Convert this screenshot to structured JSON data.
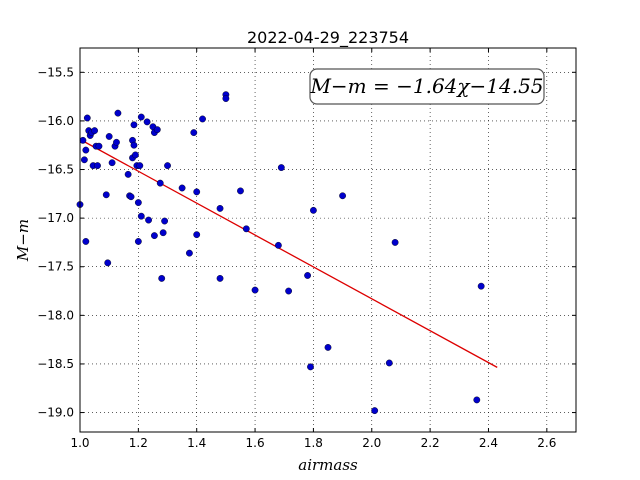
{
  "chart_data": {
    "type": "scatter",
    "title": "2022-04-29_223754",
    "xlabel": "airmass",
    "ylabel": "M−m",
    "xlim": [
      1.0,
      2.7
    ],
    "ylim": [
      -19.2,
      -15.25
    ],
    "y_inverted": true,
    "grid": true,
    "x_ticks": [
      1.0,
      1.2,
      1.4,
      1.6,
      1.8,
      2.0,
      2.2,
      2.4,
      2.6
    ],
    "x_tick_labels": [
      "1.0",
      "1.2",
      "1.4",
      "1.6",
      "1.8",
      "2.0",
      "2.2",
      "2.4",
      "2.6"
    ],
    "y_ticks": [
      -15.5,
      -16.0,
      -16.5,
      -17.0,
      -17.5,
      -18.0,
      -18.5,
      -19.0
    ],
    "y_tick_labels": [
      "−15.5",
      "−16.0",
      "−16.5",
      "−17.0",
      "−17.5",
      "−18.0",
      "−18.5",
      "−19.0"
    ],
    "annotation": "M−m = −1.64χ−14.55",
    "annotation_position": "top-right",
    "point_color": "#0000cc",
    "fit_color": "#dd0000",
    "fit": {
      "slope": -1.64,
      "intercept": -14.55,
      "x_range": [
        1.0,
        2.43
      ]
    },
    "points": [
      [
        1.0,
        -16.86
      ],
      [
        1.01,
        -16.2
      ],
      [
        1.015,
        -16.4
      ],
      [
        1.02,
        -16.3
      ],
      [
        1.02,
        -17.24
      ],
      [
        1.025,
        -15.97
      ],
      [
        1.03,
        -16.1
      ],
      [
        1.035,
        -16.15
      ],
      [
        1.04,
        -16.12
      ],
      [
        1.045,
        -16.46
      ],
      [
        1.05,
        -16.1
      ],
      [
        1.055,
        -16.26
      ],
      [
        1.06,
        -16.46
      ],
      [
        1.065,
        -16.26
      ],
      [
        1.09,
        -16.76
      ],
      [
        1.095,
        -17.46
      ],
      [
        1.1,
        -16.16
      ],
      [
        1.11,
        -16.43
      ],
      [
        1.12,
        -16.26
      ],
      [
        1.125,
        -16.22
      ],
      [
        1.13,
        -15.92
      ],
      [
        1.165,
        -16.55
      ],
      [
        1.17,
        -16.77
      ],
      [
        1.175,
        -16.78
      ],
      [
        1.18,
        -16.2
      ],
      [
        1.18,
        -16.38
      ],
      [
        1.185,
        -16.25
      ],
      [
        1.185,
        -16.04
      ],
      [
        1.19,
        -16.35
      ],
      [
        1.195,
        -16.46
      ],
      [
        1.2,
        -16.84
      ],
      [
        1.2,
        -17.24
      ],
      [
        1.205,
        -16.46
      ],
      [
        1.21,
        -15.96
      ],
      [
        1.21,
        -16.98
      ],
      [
        1.23,
        -16.01
      ],
      [
        1.235,
        -17.02
      ],
      [
        1.25,
        -16.06
      ],
      [
        1.255,
        -16.12
      ],
      [
        1.255,
        -17.18
      ],
      [
        1.265,
        -16.09
      ],
      [
        1.275,
        -16.64
      ],
      [
        1.28,
        -17.62
      ],
      [
        1.285,
        -17.15
      ],
      [
        1.29,
        -17.03
      ],
      [
        1.3,
        -16.46
      ],
      [
        1.35,
        -16.69
      ],
      [
        1.375,
        -17.36
      ],
      [
        1.39,
        -16.12
      ],
      [
        1.4,
        -17.17
      ],
      [
        1.4,
        -16.73
      ],
      [
        1.42,
        -15.98
      ],
      [
        1.48,
        -16.9
      ],
      [
        1.48,
        -17.62
      ],
      [
        1.5,
        -15.73
      ],
      [
        1.5,
        -15.77
      ],
      [
        1.55,
        -16.72
      ],
      [
        1.57,
        -17.11
      ],
      [
        1.6,
        -17.74
      ],
      [
        1.68,
        -17.28
      ],
      [
        1.69,
        -16.48
      ],
      [
        1.715,
        -17.75
      ],
      [
        1.78,
        -17.59
      ],
      [
        1.79,
        -18.53
      ],
      [
        1.8,
        -16.92
      ],
      [
        1.85,
        -18.33
      ],
      [
        1.9,
        -16.77
      ],
      [
        2.01,
        -18.98
      ],
      [
        2.06,
        -18.49
      ],
      [
        2.08,
        -17.25
      ],
      [
        2.36,
        -18.87
      ],
      [
        2.375,
        -17.7
      ]
    ]
  }
}
